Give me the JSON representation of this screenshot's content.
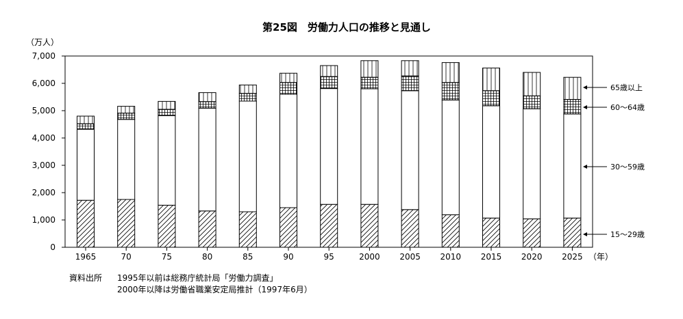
{
  "chart_data": {
    "type": "bar",
    "stacked": true,
    "title": "第25図　労働力人口の推移と見通し",
    "y_unit_label": "（万人）",
    "x_unit_label": "（年）",
    "ylim": [
      0,
      7000
    ],
    "y_ticks": [
      0,
      1000,
      2000,
      3000,
      4000,
      5000,
      6000,
      7000
    ],
    "y_tick_labels": [
      "0",
      "1,000",
      "2,000",
      "3,000",
      "4,000",
      "5,000",
      "6,000",
      "7,000"
    ],
    "categories": [
      "1965",
      "70",
      "75",
      "80",
      "85",
      "90",
      "95",
      "2000",
      "2005",
      "2010",
      "2015",
      "2020",
      "2025"
    ],
    "grid": false,
    "legend_position": "right",
    "series": [
      {
        "name": "15〜29歳",
        "pattern": "diagonal",
        "values": [
          1720,
          1750,
          1540,
          1330,
          1300,
          1450,
          1570,
          1570,
          1380,
          1190,
          1070,
          1040,
          1070
        ]
      },
      {
        "name": "30〜59歳",
        "pattern": "blank",
        "values": [
          2600,
          2930,
          3280,
          3760,
          4050,
          4150,
          4240,
          4230,
          4350,
          4200,
          4110,
          4030,
          3810
        ]
      },
      {
        "name": "60〜64歳",
        "pattern": "grid",
        "values": [
          200,
          230,
          230,
          240,
          280,
          430,
          440,
          420,
          540,
          640,
          550,
          470,
          530
        ]
      },
      {
        "name": "65歳以上",
        "pattern": "vertical",
        "values": [
          280,
          250,
          290,
          330,
          310,
          340,
          400,
          610,
          560,
          730,
          830,
          860,
          810
        ]
      }
    ]
  },
  "source": {
    "label": "資料出所",
    "line1": "1995年以前は総務庁統計局「労働力調査」",
    "line2": "2000年以降は労働省職業安定局推計（1997年6月）"
  }
}
